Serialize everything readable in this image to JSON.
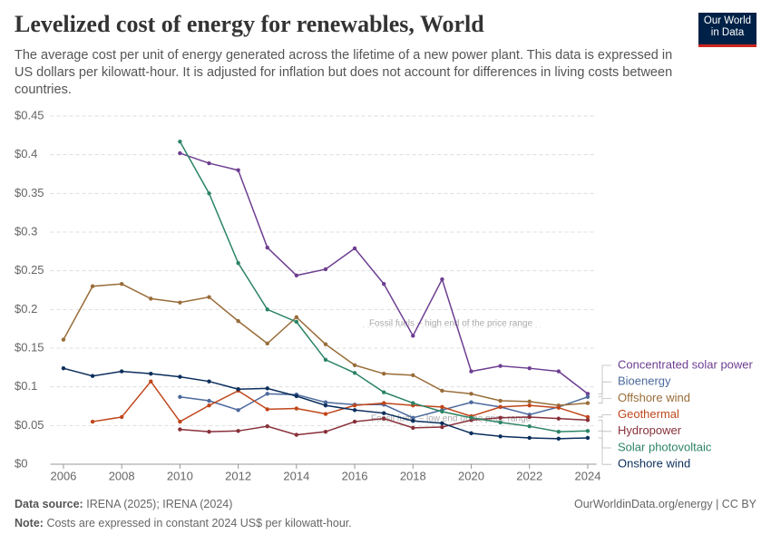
{
  "header": {
    "title": "Levelized cost of energy for renewables, World",
    "subtitle": "The average cost per unit of energy generated across the lifetime of a new power plant. This data is expressed in US dollars per kilowatt-hour. It is adjusted for inflation but does not account for differences in living costs between countries.",
    "logo": "Our World in Data"
  },
  "chart_data": {
    "type": "line",
    "x": [
      2006,
      2007,
      2008,
      2009,
      2010,
      2011,
      2012,
      2013,
      2014,
      2015,
      2016,
      2017,
      2018,
      2019,
      2020,
      2021,
      2022,
      2023,
      2024
    ],
    "xlim": [
      2005.55,
      2024.3
    ],
    "xticks": [
      2006,
      2008,
      2010,
      2012,
      2014,
      2016,
      2018,
      2020,
      2022,
      2024
    ],
    "ylim": [
      0,
      0.45
    ],
    "yticks": [
      {
        "value": 0,
        "label": "$0"
      },
      {
        "value": 0.05,
        "label": "$0.05"
      },
      {
        "value": 0.1,
        "label": "$0.1"
      },
      {
        "value": 0.15,
        "label": "$0.15"
      },
      {
        "value": 0.2,
        "label": "$0.2"
      },
      {
        "value": 0.25,
        "label": "$0.25"
      },
      {
        "value": 0.3,
        "label": "$0.3"
      },
      {
        "value": 0.35,
        "label": "$0.35"
      },
      {
        "value": 0.4,
        "label": "$0.4"
      },
      {
        "value": 0.45,
        "label": "$0.45"
      }
    ],
    "grid": true,
    "series": [
      {
        "name": "Concentrated solar power",
        "color": "#6d3e91",
        "values": [
          null,
          null,
          null,
          null,
          0.402,
          0.389,
          0.38,
          0.28,
          0.244,
          0.252,
          0.279,
          0.233,
          0.166,
          0.239,
          0.12,
          0.127,
          0.124,
          0.12,
          0.091
        ]
      },
      {
        "name": "Bioenergy",
        "color": "#4c6a9c",
        "values": [
          null,
          null,
          null,
          null,
          0.087,
          0.082,
          0.07,
          0.091,
          0.09,
          0.08,
          0.077,
          0.077,
          0.06,
          0.07,
          0.08,
          0.074,
          0.064,
          0.074,
          0.087
        ]
      },
      {
        "name": "Offshore wind",
        "color": "#996d39",
        "values": [
          0.161,
          0.23,
          0.233,
          0.214,
          0.209,
          0.216,
          0.185,
          0.156,
          0.19,
          0.155,
          0.128,
          0.117,
          0.115,
          0.095,
          0.091,
          0.082,
          0.081,
          0.076,
          0.079
        ]
      },
      {
        "name": "Geothermal",
        "color": "#c0461b",
        "values": [
          null,
          0.055,
          0.061,
          0.107,
          0.055,
          0.076,
          0.095,
          0.071,
          0.072,
          0.065,
          0.076,
          0.079,
          0.076,
          0.074,
          0.062,
          0.074,
          0.076,
          0.073,
          0.061
        ]
      },
      {
        "name": "Hydropower",
        "color": "#883039",
        "values": [
          null,
          null,
          null,
          null,
          0.045,
          0.042,
          0.043,
          0.049,
          0.038,
          0.042,
          0.055,
          0.059,
          0.047,
          0.048,
          0.057,
          0.06,
          0.061,
          0.059,
          0.057
        ]
      },
      {
        "name": "Solar photovoltaic",
        "color": "#2c8465",
        "values": [
          null,
          null,
          null,
          null,
          0.417,
          0.35,
          0.26,
          0.2,
          0.184,
          0.135,
          0.118,
          0.093,
          0.079,
          0.068,
          0.06,
          0.054,
          0.049,
          0.042,
          0.043
        ]
      },
      {
        "name": "Onshore wind",
        "color": "#0b2e5c",
        "values": [
          0.124,
          0.114,
          0.12,
          0.117,
          0.113,
          0.107,
          0.097,
          0.098,
          0.088,
          0.076,
          0.07,
          0.066,
          0.056,
          0.053,
          0.04,
          0.036,
          0.034,
          0.033,
          0.034
        ]
      }
    ],
    "annotations": [
      {
        "label": "Fossil fuels – high end of the price range",
        "value": 0.177
      },
      {
        "label": "Fossil fuels – low end of the price range",
        "value": 0.054
      }
    ]
  },
  "footer": {
    "source_label": "Data source:",
    "source": "IRENA (2025); IRENA (2024)",
    "url": "OurWorldinData.org/energy | CC BY",
    "note_label": "Note:",
    "note": "Costs are expressed in constant 2024 US$ per kilowatt-hour."
  }
}
